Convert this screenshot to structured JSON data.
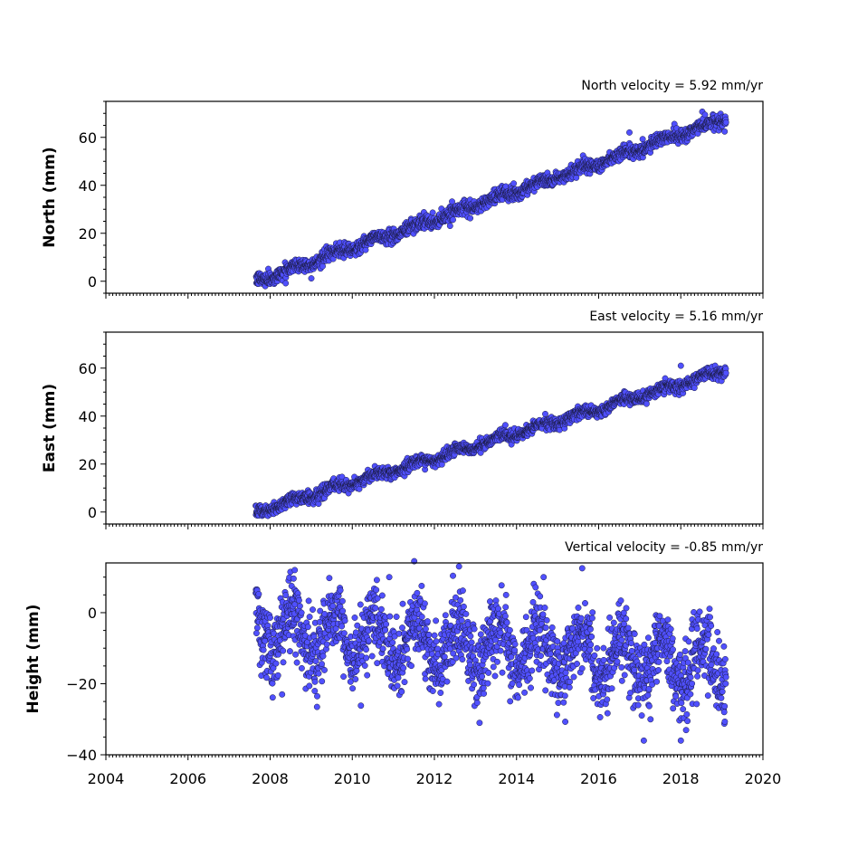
{
  "figure": {
    "x_ticks": [
      "2004",
      "2006",
      "2008",
      "2010",
      "2012",
      "2014",
      "2016",
      "2018",
      "2020"
    ]
  },
  "chart_data": [
    {
      "type": "scatter",
      "title": "North velocity = 5.92 mm/yr",
      "ylabel": "North (mm)",
      "xlim": [
        2004,
        2020
      ],
      "ylim": [
        -5,
        75
      ],
      "y_ticks": [
        0,
        20,
        40,
        60
      ],
      "y_tick_labels": [
        "0",
        "20",
        "40",
        "60"
      ],
      "start": 2007.65,
      "end": 2019.1,
      "start_value": 0,
      "velocity": 5.92,
      "scatter": 1.4,
      "seasonal": 1.0,
      "point_color": "#5050ff",
      "outliers": [
        [
          2016.75,
          62
        ]
      ]
    },
    {
      "type": "scatter",
      "title": "East velocity = 5.16 mm/yr",
      "ylabel": "East (mm)",
      "xlim": [
        2004,
        2020
      ],
      "ylim": [
        -5,
        75
      ],
      "y_ticks": [
        0,
        20,
        40,
        60
      ],
      "y_tick_labels": [
        "0",
        "20",
        "40",
        "60"
      ],
      "start": 2007.65,
      "end": 2019.1,
      "start_value": 0,
      "velocity": 5.16,
      "scatter": 1.2,
      "seasonal": 1.2,
      "point_color": "#5050ff",
      "outliers": [
        [
          2018.0,
          61
        ]
      ]
    },
    {
      "type": "scatter",
      "title": "Vertical velocity = -0.85 mm/yr",
      "ylabel": "Height (mm)",
      "xlim": [
        2004,
        2020
      ],
      "ylim": [
        -40,
        14
      ],
      "y_ticks": [
        -40,
        -20,
        0
      ],
      "y_tick_labels": [
        "−40",
        "−20",
        "0"
      ],
      "start": 2007.65,
      "end": 2019.1,
      "start_value": -5,
      "velocity": -0.85,
      "scatter": 5.0,
      "seasonal": 6.0,
      "point_color": "#5050ff",
      "outliers": [
        [
          2008.6,
          12
        ],
        [
          2012.6,
          13
        ],
        [
          2015.6,
          12.5
        ],
        [
          2010.9,
          10
        ],
        [
          2017.1,
          -36
        ],
        [
          2018.0,
          -36
        ],
        [
          2013.1,
          -31
        ]
      ]
    }
  ]
}
